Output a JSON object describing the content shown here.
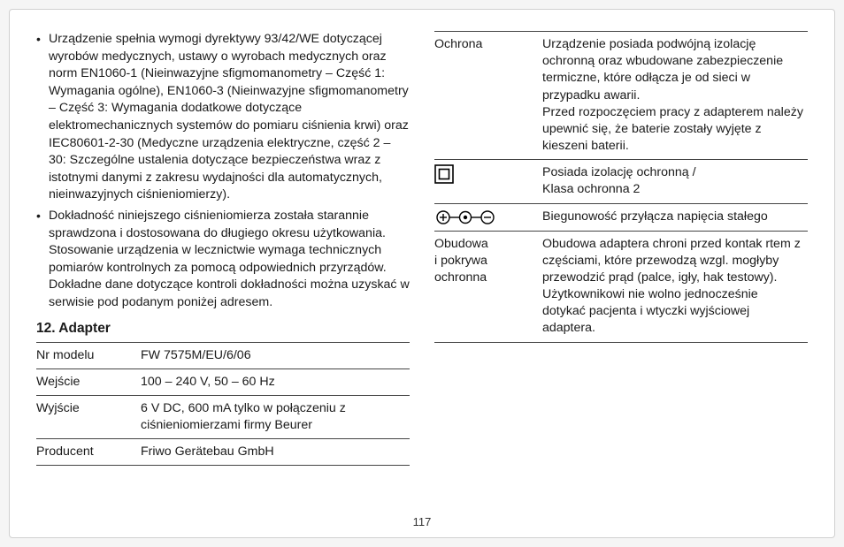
{
  "bullets": [
    "Urządzenie spełnia wymogi dyrektywy 93/42/WE dotyczącej wyrobów medycznych, ustawy o wyrobach medycznych oraz norm EN1060-1 (Nieinwazyjne sfigmomanometry – Część 1: Wymagania ogólne), EN1060-3 (Nieinwazyjne sfigmomanometry – Część 3: Wymagania dodatkowe dotyczące elektromechanicznych systemów do pomiaru ciśnienia krwi) oraz IEC80601-2-30 (Medyczne urządzenia elektryczne, część 2 – 30: Szczególne ustalenia dotyczące bezpieczeństwa wraz z istotnymi danymi z zakresu wydajności dla automatycznych, nieinwazyjnych ciśnieniomierzy).",
    "Dokładność niniejszego ciśnieniomierza została starannie sprawdzona i dostosowana do długiego okresu użytkowania. Stosowanie urządzenia w lecznictwie wymaga technicznych pomiarów kontrolnych za pomocą odpowiednich przyrządów. Dokładne dane dotyczące kontroli dokładności można uzyskać w serwisie pod podanym poniżej adresem."
  ],
  "section_title": "12. Adapter",
  "left_table": [
    {
      "label": "Nr modelu",
      "value": "FW 7575M/EU/6/06"
    },
    {
      "label": "Wejście",
      "value": "100 – 240 V, 50 – 60 Hz"
    },
    {
      "label": "Wyjście",
      "value": "6 V DC, 600 mA tylko w połączeniu z ciśnieniomierzami firmy Beurer"
    },
    {
      "label": "Producent",
      "value": "Friwo Gerätebau GmbH"
    }
  ],
  "right_table": [
    {
      "label": "Ochrona",
      "value": "Urządzenie posiada podwójną izolację ochronną oraz wbudowane zabezpieczenie termiczne, które odłącza je od sieci w przypadku awarii.\nPrzed rozpoczęciem pracy z adapterem należy upewnić się, że baterie zostały wyjęte z kieszeni baterii."
    },
    {
      "icon": "double-square",
      "value": "Posiada izolację ochronną /\nKlasa ochronna 2"
    },
    {
      "icon": "polarity",
      "value": "Biegunowość przyłącza napięcia stałego"
    },
    {
      "label": "Obudowa i pokrywa ochronna",
      "value": "Obudowa adaptera chroni przed kontak rtem z częściami, które przewodzą wzgl. mogłyby przewodzić prąd (palce, igły, hak testowy).\nUżytkownikowi nie wolno jednocześnie dotykać pacjenta i wtyczki wyjściowej adaptera."
    }
  ],
  "page_number": "117"
}
